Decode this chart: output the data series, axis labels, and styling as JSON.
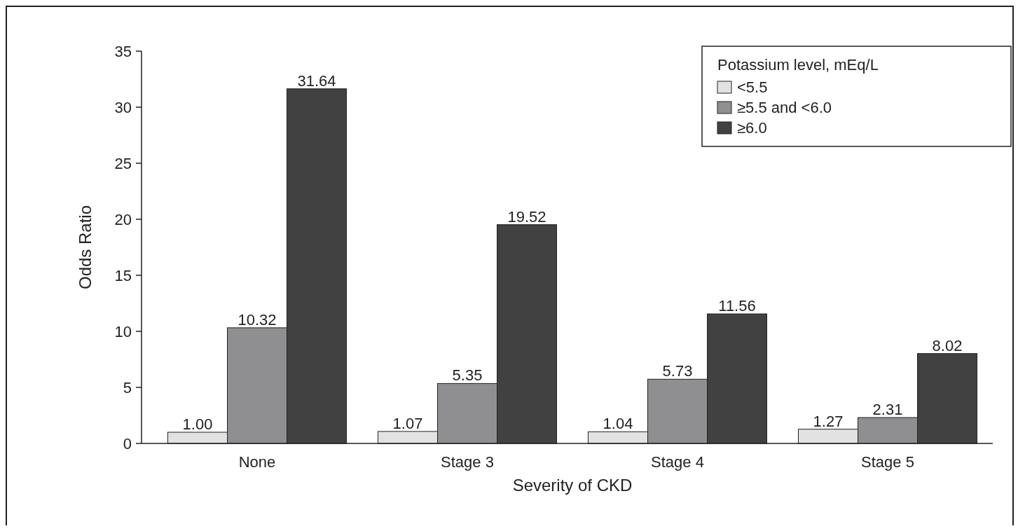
{
  "chart_data": {
    "type": "bar",
    "xlabel": "Severity of CKD",
    "ylabel": "Odds Ratio",
    "legend_title": "Potassium level, mEq/L",
    "categories": [
      "None",
      "Stage 3",
      "Stage 4",
      "Stage 5"
    ],
    "series": [
      {
        "name": "<5.5",
        "color": "#e2e2e2",
        "values": [
          1.0,
          1.07,
          1.04,
          1.27
        ],
        "value_labels": [
          "1.00",
          "1.07",
          "1.04",
          "1.27"
        ]
      },
      {
        "name": "≥5.5 and <6.0",
        "color": "#8f8f92",
        "values": [
          10.32,
          5.35,
          5.73,
          2.31
        ],
        "value_labels": [
          "10.32",
          "5.35",
          "5.73",
          "2.31"
        ]
      },
      {
        "name": "≥6.0",
        "color": "#414141",
        "values": [
          31.64,
          19.52,
          11.56,
          8.02
        ],
        "value_labels": [
          "31.64",
          "19.52",
          "11.56",
          "8.02"
        ]
      }
    ],
    "ylim": [
      0,
      35
    ],
    "yticks": [
      0,
      5,
      10,
      15,
      20,
      25,
      30,
      35
    ],
    "legend": "top right"
  }
}
